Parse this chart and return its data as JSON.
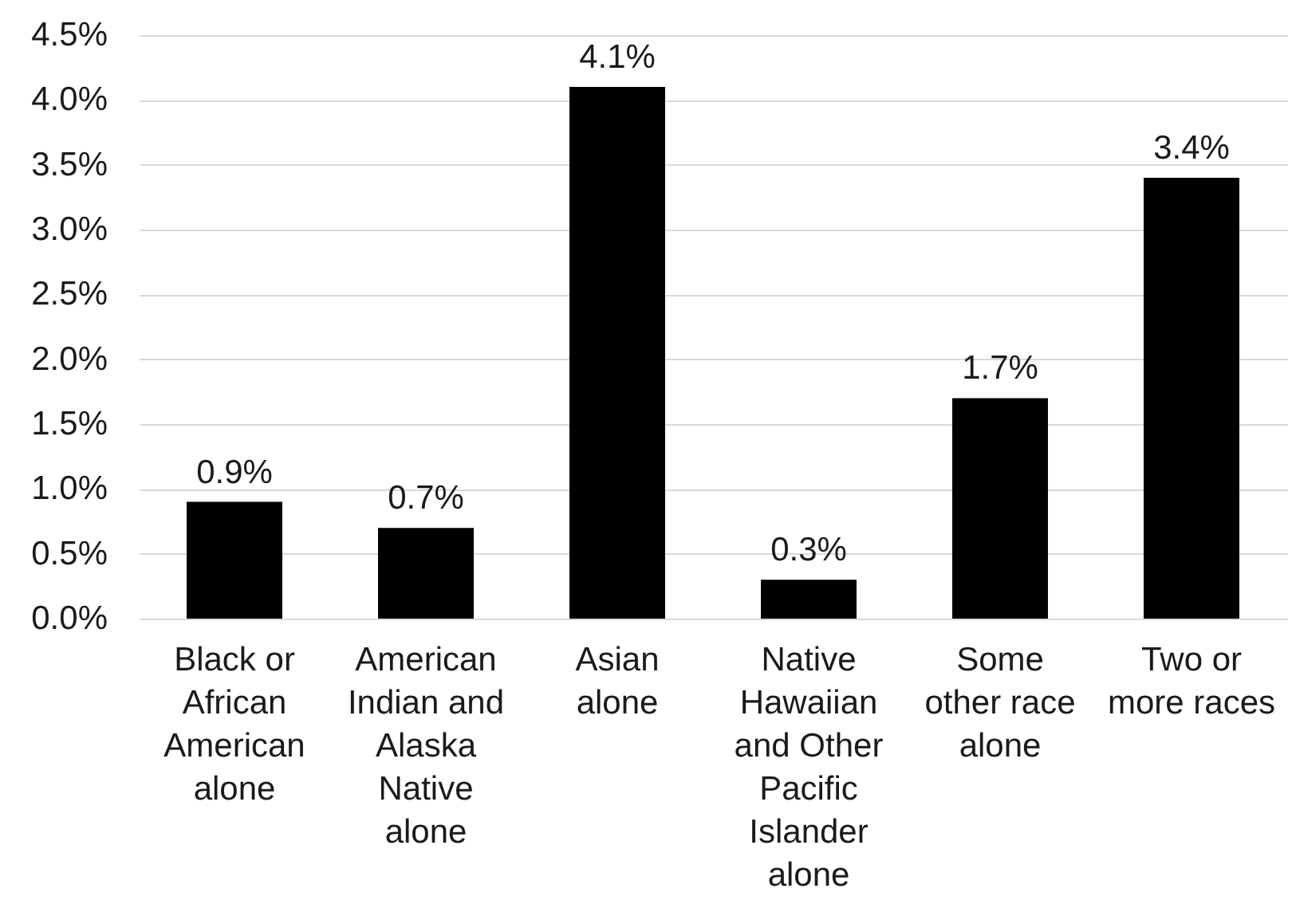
{
  "chart_data": {
    "type": "bar",
    "categories": [
      "Black or African American alone",
      "American Indian and Alaska Native alone",
      "Asian alone",
      "Native Hawaiian and Other Pacific Islander alone",
      "Some other race alone",
      "Two or more races"
    ],
    "values": [
      0.9,
      0.7,
      4.1,
      0.3,
      1.7,
      3.4
    ],
    "value_labels": [
      "0.9%",
      "0.7%",
      "4.1%",
      "0.3%",
      "1.7%",
      "3.4%"
    ],
    "color": "#000000",
    "ylim": [
      0,
      4.5
    ],
    "yticks": [
      {
        "value": 0,
        "label": "0.0%"
      },
      {
        "value": 0.5,
        "label": "0.5%"
      },
      {
        "value": 1,
        "label": "1.0%"
      },
      {
        "value": 1.5,
        "label": "1.5%"
      },
      {
        "value": 2,
        "label": "2.0%"
      },
      {
        "value": 2.5,
        "label": "2.5%"
      },
      {
        "value": 3,
        "label": "3.0%"
      },
      {
        "value": 3.5,
        "label": "3.5%"
      },
      {
        "value": 4,
        "label": "4.0%"
      },
      {
        "value": 4.5,
        "label": "4.5%"
      }
    ],
    "grid": "y"
  }
}
